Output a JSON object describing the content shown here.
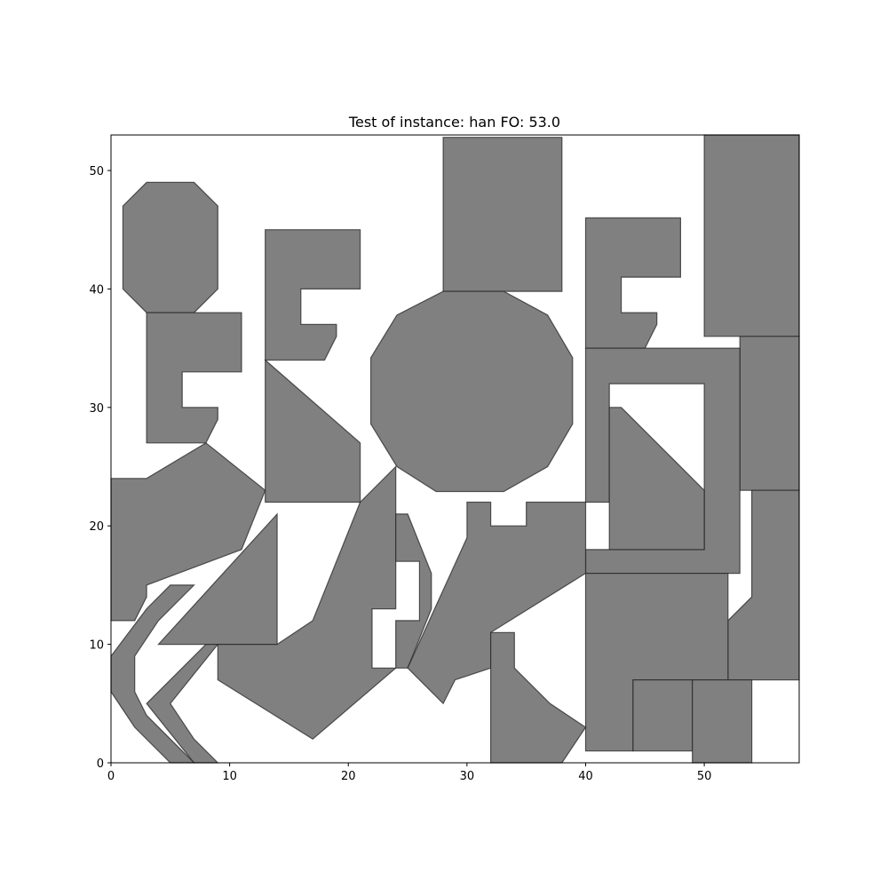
{
  "chart_data": {
    "type": "polygon",
    "title": "Test of instance: han  FO: 53.0",
    "xlabel": "",
    "ylabel": "",
    "xlim": [
      0,
      58
    ],
    "ylim": [
      0,
      53
    ],
    "xticks": [
      0,
      10,
      20,
      30,
      40,
      50
    ],
    "yticks": [
      0,
      10,
      20,
      30,
      40,
      50
    ],
    "grid": false,
    "fill_color": "#808080",
    "edge_color": "#333333",
    "polygons": [
      [
        [
          3,
          49
        ],
        [
          7,
          49
        ],
        [
          9,
          47
        ],
        [
          9,
          40
        ],
        [
          7,
          38
        ],
        [
          3,
          38
        ],
        [
          1,
          40
        ],
        [
          1,
          47
        ]
      ],
      [
        [
          3,
          38
        ],
        [
          11,
          38
        ],
        [
          11,
          33
        ],
        [
          6,
          33
        ],
        [
          6,
          30
        ],
        [
          9,
          30
        ],
        [
          9,
          29
        ],
        [
          8,
          27
        ],
        [
          3,
          27
        ]
      ],
      [
        [
          13,
          45
        ],
        [
          21,
          45
        ],
        [
          21,
          40
        ],
        [
          16,
          40
        ],
        [
          16,
          37
        ],
        [
          19,
          37
        ],
        [
          19,
          36
        ],
        [
          18,
          34
        ],
        [
          13,
          34
        ]
      ],
      [
        [
          13,
          34
        ],
        [
          21,
          27
        ],
        [
          21,
          22
        ],
        [
          13,
          22
        ]
      ],
      [
        [
          0,
          24
        ],
        [
          3,
          24
        ],
        [
          8,
          27
        ],
        [
          13,
          23
        ],
        [
          11,
          18
        ],
        [
          3,
          15
        ],
        [
          3,
          14
        ],
        [
          2,
          12
        ],
        [
          0,
          12
        ]
      ],
      [
        [
          28,
          52.8
        ],
        [
          38,
          52.8
        ],
        [
          38,
          39.8
        ],
        [
          28,
          39.8
        ]
      ],
      [
        [
          28,
          39.8
        ],
        [
          33.1,
          39.8
        ],
        [
          36.8,
          37.8
        ],
        [
          38.9,
          34.2
        ],
        [
          38.9,
          28.6
        ],
        [
          36.8,
          25
        ],
        [
          33.1,
          22.9
        ],
        [
          27.4,
          22.9
        ],
        [
          24.1,
          25
        ],
        [
          21.9,
          28.6
        ],
        [
          21.9,
          34.2
        ],
        [
          24.1,
          37.8
        ]
      ],
      [
        [
          40,
          46
        ],
        [
          48,
          46
        ],
        [
          48,
          41
        ],
        [
          43,
          41
        ],
        [
          43,
          38
        ],
        [
          46,
          38
        ],
        [
          46,
          37
        ],
        [
          45,
          35
        ],
        [
          40,
          35
        ]
      ],
      [
        [
          50,
          53
        ],
        [
          58,
          53
        ],
        [
          58,
          36
        ],
        [
          50,
          36
        ]
      ],
      [
        [
          53,
          36
        ],
        [
          58,
          36
        ],
        [
          58,
          23
        ],
        [
          53,
          23
        ]
      ],
      [
        [
          54,
          23
        ],
        [
          58,
          23
        ],
        [
          58,
          7
        ],
        [
          52,
          7
        ],
        [
          52,
          12
        ],
        [
          54,
          14
        ]
      ],
      [
        [
          40,
          35
        ],
        [
          53,
          35
        ],
        [
          53,
          16
        ],
        [
          40,
          16
        ],
        [
          40,
          18
        ],
        [
          50,
          18
        ],
        [
          50,
          32
        ],
        [
          42,
          32
        ],
        [
          42,
          22
        ],
        [
          40,
          22
        ]
      ],
      [
        [
          42,
          30
        ],
        [
          43,
          30
        ],
        [
          50,
          23
        ],
        [
          50,
          18
        ],
        [
          42,
          18
        ]
      ],
      [
        [
          40,
          16
        ],
        [
          52,
          16
        ],
        [
          52,
          7
        ],
        [
          44,
          7
        ],
        [
          44,
          1
        ],
        [
          40,
          1
        ]
      ],
      [
        [
          44,
          7
        ],
        [
          49,
          7
        ],
        [
          49,
          1
        ],
        [
          44,
          1
        ]
      ],
      [
        [
          49,
          7
        ],
        [
          54,
          7
        ],
        [
          54,
          0
        ],
        [
          49,
          0
        ]
      ],
      [
        [
          4,
          10
        ],
        [
          14,
          21
        ],
        [
          14,
          10
        ]
      ],
      [
        [
          21,
          22
        ],
        [
          24,
          25
        ],
        [
          24,
          13
        ],
        [
          22,
          13
        ],
        [
          22,
          8
        ],
        [
          24,
          8
        ],
        [
          17,
          2
        ],
        [
          9,
          7
        ],
        [
          9,
          10
        ],
        [
          14,
          10
        ],
        [
          17,
          12
        ]
      ],
      [
        [
          24,
          21
        ],
        [
          25,
          21
        ],
        [
          27,
          16
        ],
        [
          27,
          13
        ],
        [
          25,
          8
        ],
        [
          24,
          8
        ],
        [
          24,
          12
        ],
        [
          26,
          12
        ],
        [
          26,
          17
        ],
        [
          24,
          17
        ]
      ],
      [
        [
          30,
          22
        ],
        [
          32,
          22
        ],
        [
          32,
          20
        ],
        [
          35,
          20
        ],
        [
          35,
          22
        ],
        [
          40,
          22
        ],
        [
          40,
          16
        ],
        [
          32,
          11
        ],
        [
          32,
          8
        ],
        [
          29,
          7
        ],
        [
          28,
          5
        ],
        [
          25,
          8
        ],
        [
          30,
          19
        ]
      ],
      [
        [
          32,
          11
        ],
        [
          34,
          11
        ],
        [
          34,
          8
        ],
        [
          37,
          5
        ],
        [
          40,
          3
        ],
        [
          38,
          0
        ],
        [
          32,
          0
        ]
      ],
      [
        [
          5,
          15
        ],
        [
          7,
          15
        ],
        [
          4,
          12
        ],
        [
          2,
          9
        ],
        [
          2,
          6
        ],
        [
          3,
          4
        ],
        [
          5,
          2
        ],
        [
          7,
          0
        ],
        [
          5,
          0
        ],
        [
          2,
          3
        ],
        [
          0,
          6
        ],
        [
          0,
          9
        ],
        [
          3,
          13
        ]
      ],
      [
        [
          8,
          10
        ],
        [
          9,
          10
        ],
        [
          5,
          5
        ],
        [
          7,
          2
        ],
        [
          9,
          0
        ],
        [
          7,
          0
        ],
        [
          3,
          5
        ]
      ]
    ]
  }
}
